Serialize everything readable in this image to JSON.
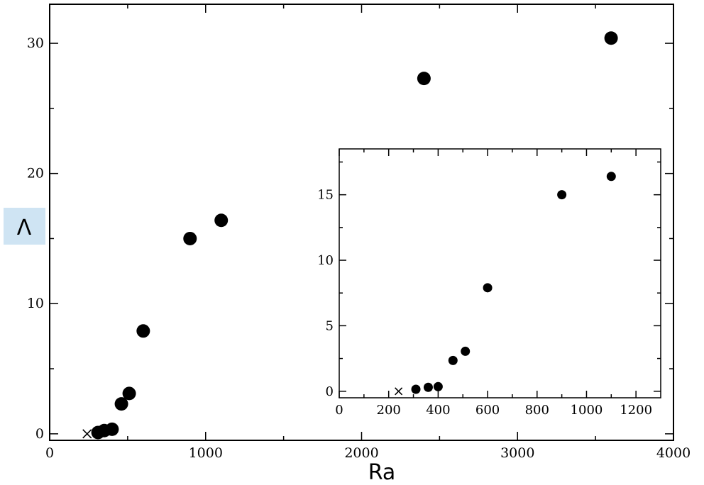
{
  "chart_data": [
    {
      "type": "scatter",
      "title": "",
      "xlabel": "Ra",
      "ylabel": "Λ",
      "xlim": [
        0,
        4000
      ],
      "ylim": [
        -0.5,
        33
      ],
      "xticks": [
        "0",
        "1000",
        "2000",
        "3000",
        "4000"
      ],
      "yticks": [
        "0",
        "10",
        "20",
        "30"
      ],
      "grid": false,
      "series": [
        {
          "marker": "circle",
          "x": [
            310,
            350,
            400,
            460,
            510,
            600,
            900,
            1100,
            2400,
            3600
          ],
          "y": [
            0.1,
            0.25,
            0.35,
            2.3,
            3.1,
            7.9,
            15.0,
            16.4,
            27.3,
            30.4
          ]
        },
        {
          "marker": "x",
          "x": [
            240
          ],
          "y": [
            0.0
          ]
        }
      ]
    },
    {
      "type": "scatter",
      "title": "",
      "xlabel": "",
      "ylabel": "",
      "xlim": [
        0,
        1300
      ],
      "ylim": [
        -0.5,
        18.5
      ],
      "xticks": [
        "0",
        "200",
        "400",
        "600",
        "800",
        "1000",
        "1200"
      ],
      "yticks": [
        "0",
        "5",
        "10",
        "15"
      ],
      "grid": false,
      "series": [
        {
          "marker": "circle",
          "x": [
            310,
            360,
            400,
            460,
            510,
            600,
            900,
            1100
          ],
          "y": [
            0.15,
            0.3,
            0.35,
            2.35,
            3.05,
            7.9,
            15.0,
            16.4
          ]
        },
        {
          "marker": "x",
          "x": [
            240
          ],
          "y": [
            0.0
          ]
        }
      ]
    }
  ]
}
